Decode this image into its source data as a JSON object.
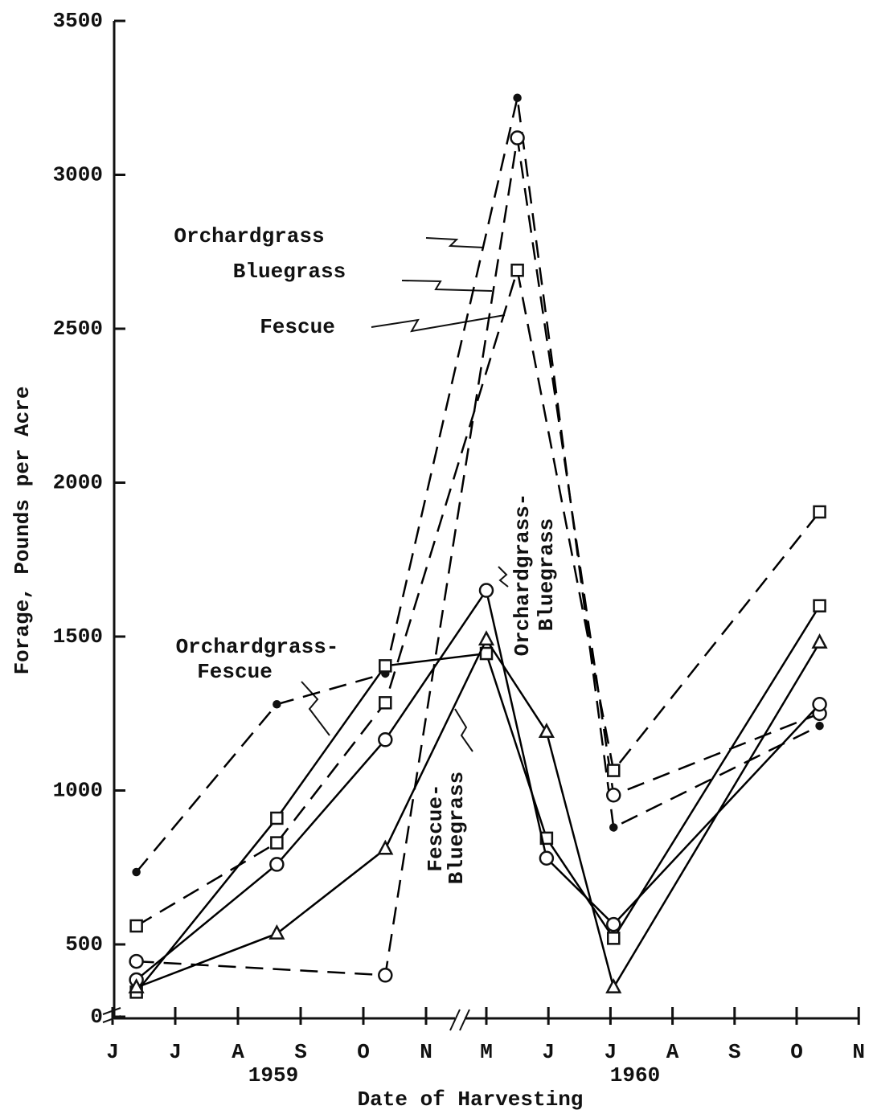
{
  "chart_data": {
    "type": "line",
    "x_label": "Date of Harvesting",
    "y_label": "Forage, Pounds per Acre",
    "annotations": [
      "Orchardgrass",
      "Bluegrass",
      "Fescue",
      "Orchardgrass-",
      "Fescue",
      "Orchardgrass-",
      "Bluegrass",
      "Fescue-",
      "Bluegrass",
      "1959",
      "1960"
    ],
    "xlim": [
      6,
      23
    ],
    "xticks": [
      {
        "value": 6,
        "label": "J"
      },
      {
        "value": 7,
        "label": "J"
      },
      {
        "value": 8,
        "label": "A"
      },
      {
        "value": 9,
        "label": "S"
      },
      {
        "value": 10,
        "label": "O"
      },
      {
        "value": 11,
        "label": "N"
      },
      {
        "value": 17,
        "label": "M"
      },
      {
        "value": 18,
        "label": "J"
      },
      {
        "value": 19,
        "label": "J"
      },
      {
        "value": 20,
        "label": "A"
      },
      {
        "value": 21,
        "label": "S"
      },
      {
        "value": 22,
        "label": "O"
      },
      {
        "value": 23,
        "label": "N"
      }
    ],
    "ylim": [
      0,
      3500
    ],
    "yticks": [
      0,
      500,
      1000,
      1500,
      2000,
      2500,
      3000,
      3500
    ],
    "series": [
      {
        "name": "Orchardgrass",
        "color": "#000000",
        "dash": true,
        "marker": "dot",
        "x": [
          6.38,
          8.62,
          10.35,
          17.5,
          19.05,
          22.37
        ],
        "values": [
          735,
          1280,
          1380,
          3250,
          880,
          1210
        ]
      },
      {
        "name": "Bluegrass",
        "color": "#000000",
        "dash": true,
        "marker": "circle",
        "x": [
          6.38,
          10.35,
          17.5,
          19.05,
          22.37
        ],
        "values": [
          445,
          400,
          3120,
          985,
          1250
        ]
      },
      {
        "name": "Fescue",
        "color": "#000000",
        "dash": true,
        "marker": "square",
        "x": [
          6.38,
          8.62,
          10.35,
          17.5,
          19.05,
          22.37
        ],
        "values": [
          560,
          830,
          1285,
          2690,
          1065,
          1905
        ]
      },
      {
        "name": "Orchardgrass-Fescue",
        "color": "#000000",
        "dash": false,
        "marker": "square",
        "x": [
          6.38,
          8.62,
          10.35,
          17.0,
          17.97,
          19.05,
          22.37
        ],
        "values": [
          345,
          910,
          1405,
          1445,
          845,
          520,
          1600
        ]
      },
      {
        "name": "Orchardgrass-Bluegrass",
        "color": "#000000",
        "dash": false,
        "marker": "circle",
        "x": [
          6.38,
          8.62,
          10.35,
          17.0,
          17.97,
          19.05,
          22.37
        ],
        "values": [
          385,
          760,
          1165,
          1650,
          780,
          565,
          1280
        ]
      },
      {
        "name": "Fescue-Bluegrass",
        "color": "#000000",
        "dash": false,
        "marker": "triangle",
        "x": [
          6.38,
          8.62,
          10.35,
          17.0,
          17.97,
          19.05,
          22.37
        ],
        "values": [
          360,
          535,
          810,
          1490,
          1190,
          360,
          1480
        ]
      }
    ]
  }
}
